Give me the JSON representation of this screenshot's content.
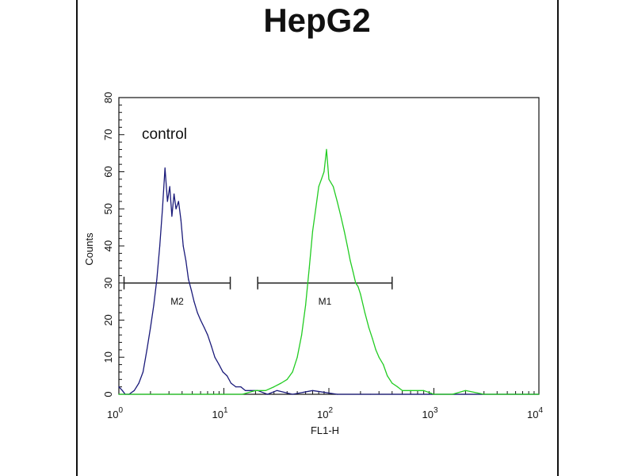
{
  "chart_data": {
    "type": "line",
    "title": "HepG2",
    "xlabel": "FL1-H",
    "ylabel": "Counts",
    "x_scale": "log",
    "xlim": [
      1,
      10000
    ],
    "ylim": [
      0,
      80
    ],
    "x_ticks": [
      1,
      10,
      100,
      1000,
      10000
    ],
    "x_tick_labels": [
      {
        "base": "10",
        "exp": "0"
      },
      {
        "base": "10",
        "exp": "1"
      },
      {
        "base": "10",
        "exp": "2"
      },
      {
        "base": "10",
        "exp": "3"
      },
      {
        "base": "10",
        "exp": "4"
      }
    ],
    "y_ticks": [
      0,
      10,
      20,
      30,
      40,
      50,
      60,
      70,
      80
    ],
    "grid": false,
    "legend": "none",
    "annotations": [
      {
        "text": "control",
        "x": 2.0,
        "y": 70
      }
    ],
    "gates": [
      {
        "label": "M2",
        "x_start": 1.12,
        "x_end": 11.5,
        "y": 30
      },
      {
        "label": "M1",
        "x_start": 21,
        "x_end": 400,
        "y": 30
      }
    ],
    "series": [
      {
        "color": "#1a1a7a",
        "x": [
          1.0,
          1.08,
          1.15,
          1.25,
          1.4,
          1.55,
          1.7,
          1.85,
          2.0,
          2.15,
          2.3,
          2.45,
          2.6,
          2.75,
          2.9,
          3.05,
          3.2,
          3.35,
          3.5,
          3.7,
          3.9,
          4.1,
          4.35,
          4.6,
          4.9,
          5.2,
          5.6,
          6.0,
          6.5,
          7.0,
          7.6,
          8.2,
          9.0,
          9.8,
          10.7,
          11.7,
          13,
          14.5,
          16,
          18,
          21,
          26,
          32,
          45,
          70,
          120,
          250,
          500,
          1000,
          3000,
          10000
        ],
        "y": [
          2,
          1,
          0,
          0,
          1,
          3,
          6,
          12,
          18,
          24,
          31,
          40,
          50,
          61,
          52,
          56,
          48,
          54,
          50,
          52,
          47,
          40,
          36,
          31,
          28,
          25,
          22,
          20,
          18,
          16,
          13,
          10,
          8,
          6,
          5,
          3,
          2,
          2,
          1,
          1,
          1,
          0,
          1,
          0,
          1,
          0,
          0,
          0,
          0,
          0,
          0
        ]
      },
      {
        "color": "#22cc22",
        "x": [
          1,
          3,
          10,
          15,
          20,
          25,
          30,
          35,
          40,
          45,
          50,
          55,
          60,
          65,
          70,
          75,
          80,
          85,
          90,
          95,
          100,
          110,
          120,
          130,
          140,
          150,
          160,
          170,
          180,
          190,
          200,
          220,
          240,
          260,
          280,
          300,
          330,
          360,
          400,
          450,
          500,
          600,
          800,
          1000,
          1500,
          2000,
          3000,
          5000,
          10000
        ],
        "y": [
          0,
          0,
          0,
          0,
          1,
          1,
          2,
          3,
          4,
          6,
          10,
          16,
          24,
          34,
          44,
          50,
          56,
          58,
          60,
          66,
          58,
          56,
          52,
          48,
          44,
          40,
          36,
          33,
          30,
          29,
          27,
          22,
          18,
          15,
          12,
          10,
          8,
          5,
          3,
          2,
          1,
          1,
          1,
          0,
          0,
          1,
          0,
          0,
          0
        ]
      }
    ]
  }
}
